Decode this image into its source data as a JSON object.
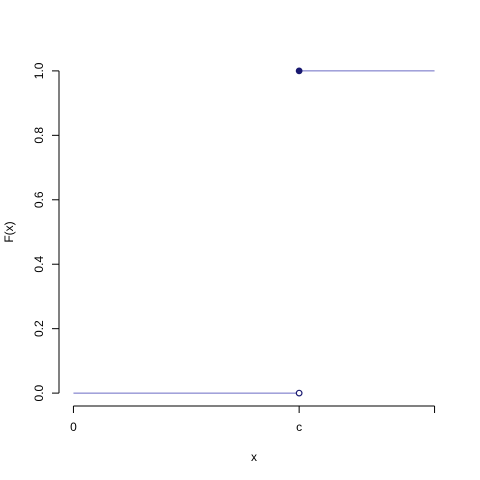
{
  "chart_data": {
    "type": "step",
    "x_label": "x",
    "y_label": "F(x)",
    "xlim": [
      -0.32,
      8.32
    ],
    "ylim": [
      -0.04,
      1.04
    ],
    "xticks": [
      0,
      {
        "value": 5,
        "label": "c"
      },
      {
        "value": 8,
        "label": null
      }
    ],
    "yticks": [
      {
        "value": 0,
        "label": "0.0"
      },
      {
        "value": 0.2,
        "label": "0.2"
      },
      {
        "value": 0.4,
        "label": "0.4"
      },
      {
        "value": 0.6,
        "label": "0.6"
      },
      {
        "value": 0.8,
        "label": "0.8"
      },
      {
        "value": 1,
        "label": "1.0"
      }
    ],
    "line_color": "#6b6bc4",
    "point_color": "#191970",
    "segments": [
      {
        "x": [
          0,
          5
        ],
        "y": [
          0,
          0
        ]
      },
      {
        "x": [
          5,
          8
        ],
        "y": [
          1,
          1
        ]
      }
    ],
    "points": [
      {
        "x": 5,
        "y": 0,
        "filled": false
      },
      {
        "x": 5,
        "y": 1,
        "filled": true
      }
    ]
  }
}
